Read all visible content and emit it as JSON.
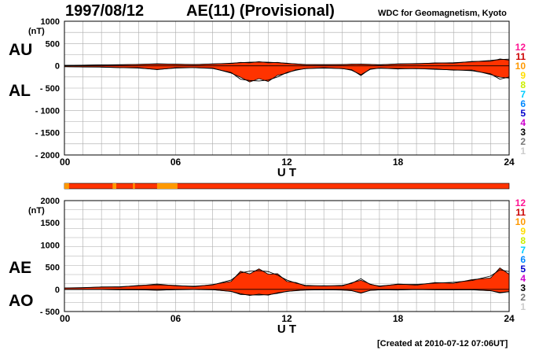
{
  "header": {
    "date": "1997/08/12",
    "title": "AE(11) (Provisional)",
    "source": "WDC for Geomagnetism, Kyoto"
  },
  "footer": {
    "created": "[Created at 2010-07-12 07:06UT]"
  },
  "station_count_legend": [
    "12",
    "11",
    "10",
    "9",
    "8",
    "7",
    "6",
    "5",
    "4",
    "3",
    "2",
    "1"
  ],
  "station_count_colors": [
    "#ff1493",
    "#cc0000",
    "#ff9900",
    "#ffdd00",
    "#ccee00",
    "#00ccff",
    "#0088ff",
    "#0000cc",
    "#cc00cc",
    "#000000",
    "#777777",
    "#cccccc"
  ],
  "data_color": "#ff3300",
  "station_bar_color": "#ff3300",
  "station_bar_segments": [
    {
      "start_h": 0.0,
      "end_h": 0.25,
      "count": "10"
    },
    {
      "start_h": 2.6,
      "end_h": 2.8,
      "count": "10"
    },
    {
      "start_h": 3.7,
      "end_h": 3.8,
      "count": "10"
    },
    {
      "start_h": 5.0,
      "end_h": 6.1,
      "count": "10"
    }
  ],
  "chart_data": [
    {
      "type": "area",
      "ylabel_top": "AU",
      "ylabel_bottom": "AL",
      "unit": "(nT)",
      "xlabel": "U T",
      "xlim": [
        0,
        24
      ],
      "ylim": [
        -2000,
        1000
      ],
      "xticks": [
        "00",
        "06",
        "12",
        "18",
        "24"
      ],
      "yticks": [
        "1000",
        "500",
        "0",
        "- 500",
        "- 1000",
        "- 1500",
        "- 2000"
      ],
      "grid": true,
      "x": [
        0,
        1,
        2,
        3,
        4,
        5,
        6,
        7,
        8,
        9,
        9.5,
        10,
        10.5,
        11,
        11.5,
        12,
        12.5,
        13,
        14,
        15,
        15.5,
        16,
        16.5,
        17,
        18,
        19,
        20,
        21,
        22,
        23,
        23.5,
        24
      ],
      "series": [
        {
          "name": "AU",
          "values": [
            10,
            15,
            20,
            25,
            30,
            45,
            35,
            30,
            40,
            60,
            70,
            80,
            85,
            80,
            70,
            60,
            40,
            30,
            25,
            30,
            35,
            40,
            30,
            25,
            40,
            50,
            60,
            70,
            90,
            120,
            140,
            150
          ]
        },
        {
          "name": "AL",
          "values": [
            -20,
            -25,
            -30,
            -40,
            -50,
            -80,
            -50,
            -40,
            -60,
            -150,
            -300,
            -330,
            -340,
            -320,
            -250,
            -150,
            -100,
            -60,
            -50,
            -60,
            -100,
            -200,
            -80,
            -50,
            -70,
            -60,
            -80,
            -90,
            -110,
            -180,
            -300,
            -250
          ]
        }
      ]
    },
    {
      "type": "area",
      "ylabel_top": "AE",
      "ylabel_bottom": "AO",
      "unit": "(nT)",
      "xlabel": "U T",
      "xlim": [
        0,
        24
      ],
      "ylim": [
        -500,
        2000
      ],
      "xticks": [
        "00",
        "06",
        "12",
        "18",
        "24"
      ],
      "yticks": [
        "2000",
        "1500",
        "1000",
        "500",
        "0",
        "- 500"
      ],
      "grid": true,
      "x": [
        0,
        1,
        2,
        3,
        4,
        5,
        6,
        7,
        8,
        9,
        9.5,
        10,
        10.5,
        11,
        11.5,
        12,
        12.5,
        13,
        14,
        15,
        15.5,
        16,
        16.5,
        17,
        18,
        19,
        20,
        21,
        22,
        23,
        23.5,
        24
      ],
      "series": [
        {
          "name": "AE",
          "values": [
            30,
            40,
            50,
            60,
            80,
            120,
            80,
            70,
            100,
            210,
            370,
            410,
            420,
            400,
            320,
            210,
            140,
            90,
            75,
            90,
            135,
            240,
            110,
            75,
            110,
            110,
            140,
            160,
            200,
            300,
            440,
            400
          ]
        },
        {
          "name": "AO",
          "values": [
            -5,
            -5,
            -5,
            -8,
            -10,
            -18,
            -8,
            -5,
            -10,
            -45,
            -115,
            -125,
            -128,
            -120,
            -90,
            -45,
            -30,
            -15,
            -12,
            -15,
            -32,
            -80,
            -25,
            -12,
            -15,
            -5,
            -10,
            -10,
            -10,
            -30,
            -80,
            -50
          ]
        }
      ]
    }
  ]
}
